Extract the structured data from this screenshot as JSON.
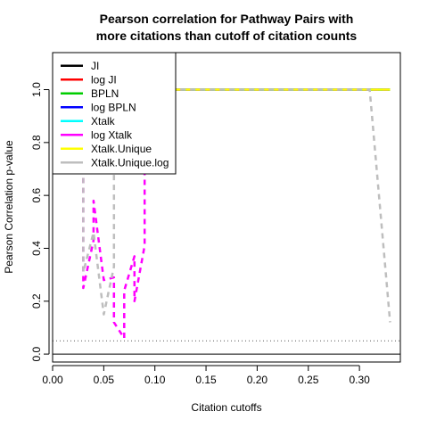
{
  "chart_data": {
    "type": "line",
    "title_line1": "Pearson correlation for Pathway Pairs with",
    "title_line2": "more citations than cutoff of citation counts",
    "xlabel": "Citation cutoffs",
    "ylabel": "Pearson Correlation p-value",
    "xlim": [
      0.0,
      0.34
    ],
    "ylim": [
      -0.03,
      1.14
    ],
    "xticks": [
      "0.00",
      "0.05",
      "0.10",
      "0.15",
      "0.20",
      "0.25",
      "0.30"
    ],
    "yticks": [
      "0.0",
      "0.2",
      "0.4",
      "0.6",
      "0.8",
      "1.0"
    ],
    "hlines": [
      {
        "y": 0.0,
        "style": "solid",
        "color": "#000000"
      },
      {
        "y": 0.05,
        "style": "dotted",
        "color": "#555555"
      }
    ],
    "legend_position": "top-left",
    "series": [
      {
        "name": "JI",
        "color": "#000000",
        "dash": "solid",
        "x": [
          0.09,
          0.33
        ],
        "y": [
          1.0,
          1.0
        ]
      },
      {
        "name": "log JI",
        "color": "#ff0000",
        "dash": "solid",
        "x": [
          0.09,
          0.33
        ],
        "y": [
          1.0,
          1.0
        ]
      },
      {
        "name": "BPLN",
        "color": "#00cd00",
        "dash": "solid",
        "x": [
          0.09,
          0.33
        ],
        "y": [
          1.0,
          1.0
        ]
      },
      {
        "name": "log BPLN",
        "color": "#0000ff",
        "dash": "solid",
        "x": [
          0.09,
          0.33
        ],
        "y": [
          1.0,
          1.0
        ]
      },
      {
        "name": "Xtalk",
        "color": "#00ffff",
        "dash": "solid",
        "x": [
          0.09,
          0.33
        ],
        "y": [
          1.0,
          1.0
        ]
      },
      {
        "name": "log Xtalk",
        "color": "#ff00ff",
        "dash": "dashed",
        "x": [
          0.03,
          0.03,
          0.04,
          0.04,
          0.05,
          0.06,
          0.06,
          0.07,
          0.07,
          0.08,
          0.08,
          0.09,
          0.09,
          0.33
        ],
        "y": [
          1.0,
          0.25,
          0.43,
          0.58,
          0.28,
          0.29,
          0.12,
          0.06,
          0.24,
          0.37,
          0.2,
          0.41,
          1.0,
          1.0
        ]
      },
      {
        "name": "Xtalk.Unique",
        "color": "#ffff00",
        "dash": "solid",
        "x": [
          0.09,
          0.33
        ],
        "y": [
          1.0,
          1.0
        ]
      },
      {
        "name": "Xtalk.Unique.log",
        "color": "#bebebe",
        "dash": "dashed",
        "x": [
          0.03,
          0.03,
          0.04,
          0.05,
          0.06,
          0.06,
          0.31,
          0.33
        ],
        "y": [
          1.0,
          0.31,
          0.46,
          0.15,
          0.33,
          1.0,
          1.0,
          0.12
        ]
      }
    ]
  }
}
